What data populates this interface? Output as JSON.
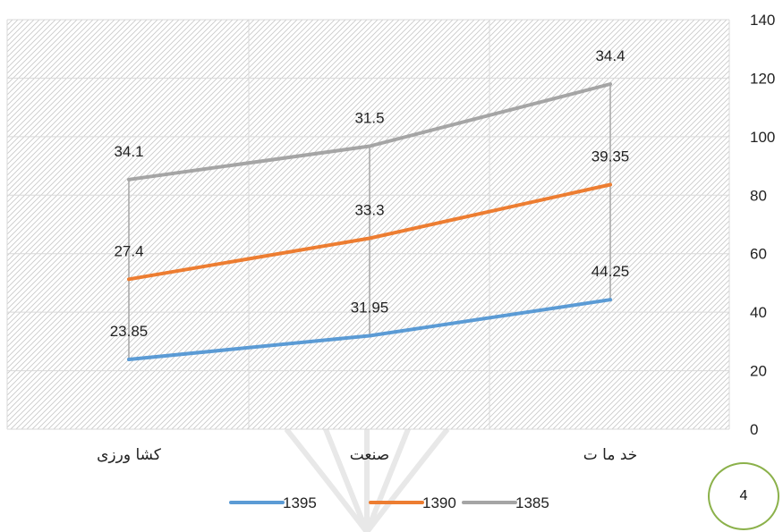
{
  "chart_data": {
    "type": "line",
    "stacked": true,
    "categories": [
      "کشاورزی",
      "صنعت",
      "خدمات"
    ],
    "category_display": [
      "کشا ورزی",
      "صنعت",
      "خد ما ت"
    ],
    "series": [
      {
        "name": "1395",
        "values": [
          23.85,
          31.95,
          44.25
        ],
        "labels": [
          "23.85",
          "31.95",
          "44.25"
        ],
        "color": "#5b9bd5"
      },
      {
        "name": "1390",
        "values": [
          27.4,
          33.3,
          39.35
        ],
        "labels": [
          "27.4",
          "33.3",
          "39.35"
        ],
        "color": "#ed7d31"
      },
      {
        "name": "1385",
        "values": [
          34.1,
          31.5,
          34.4
        ],
        "labels": [
          "34.1",
          "31.5",
          "34.4"
        ],
        "color": "#a5a5a5"
      }
    ],
    "ylim": [
      0,
      140
    ],
    "yticks": [
      "0",
      "20",
      "40",
      "60",
      "80",
      "100",
      "120",
      "140"
    ],
    "y_axis_position": "right",
    "grid": true,
    "legend_position": "bottom",
    "drop_lines": true
  },
  "page_number": "4"
}
